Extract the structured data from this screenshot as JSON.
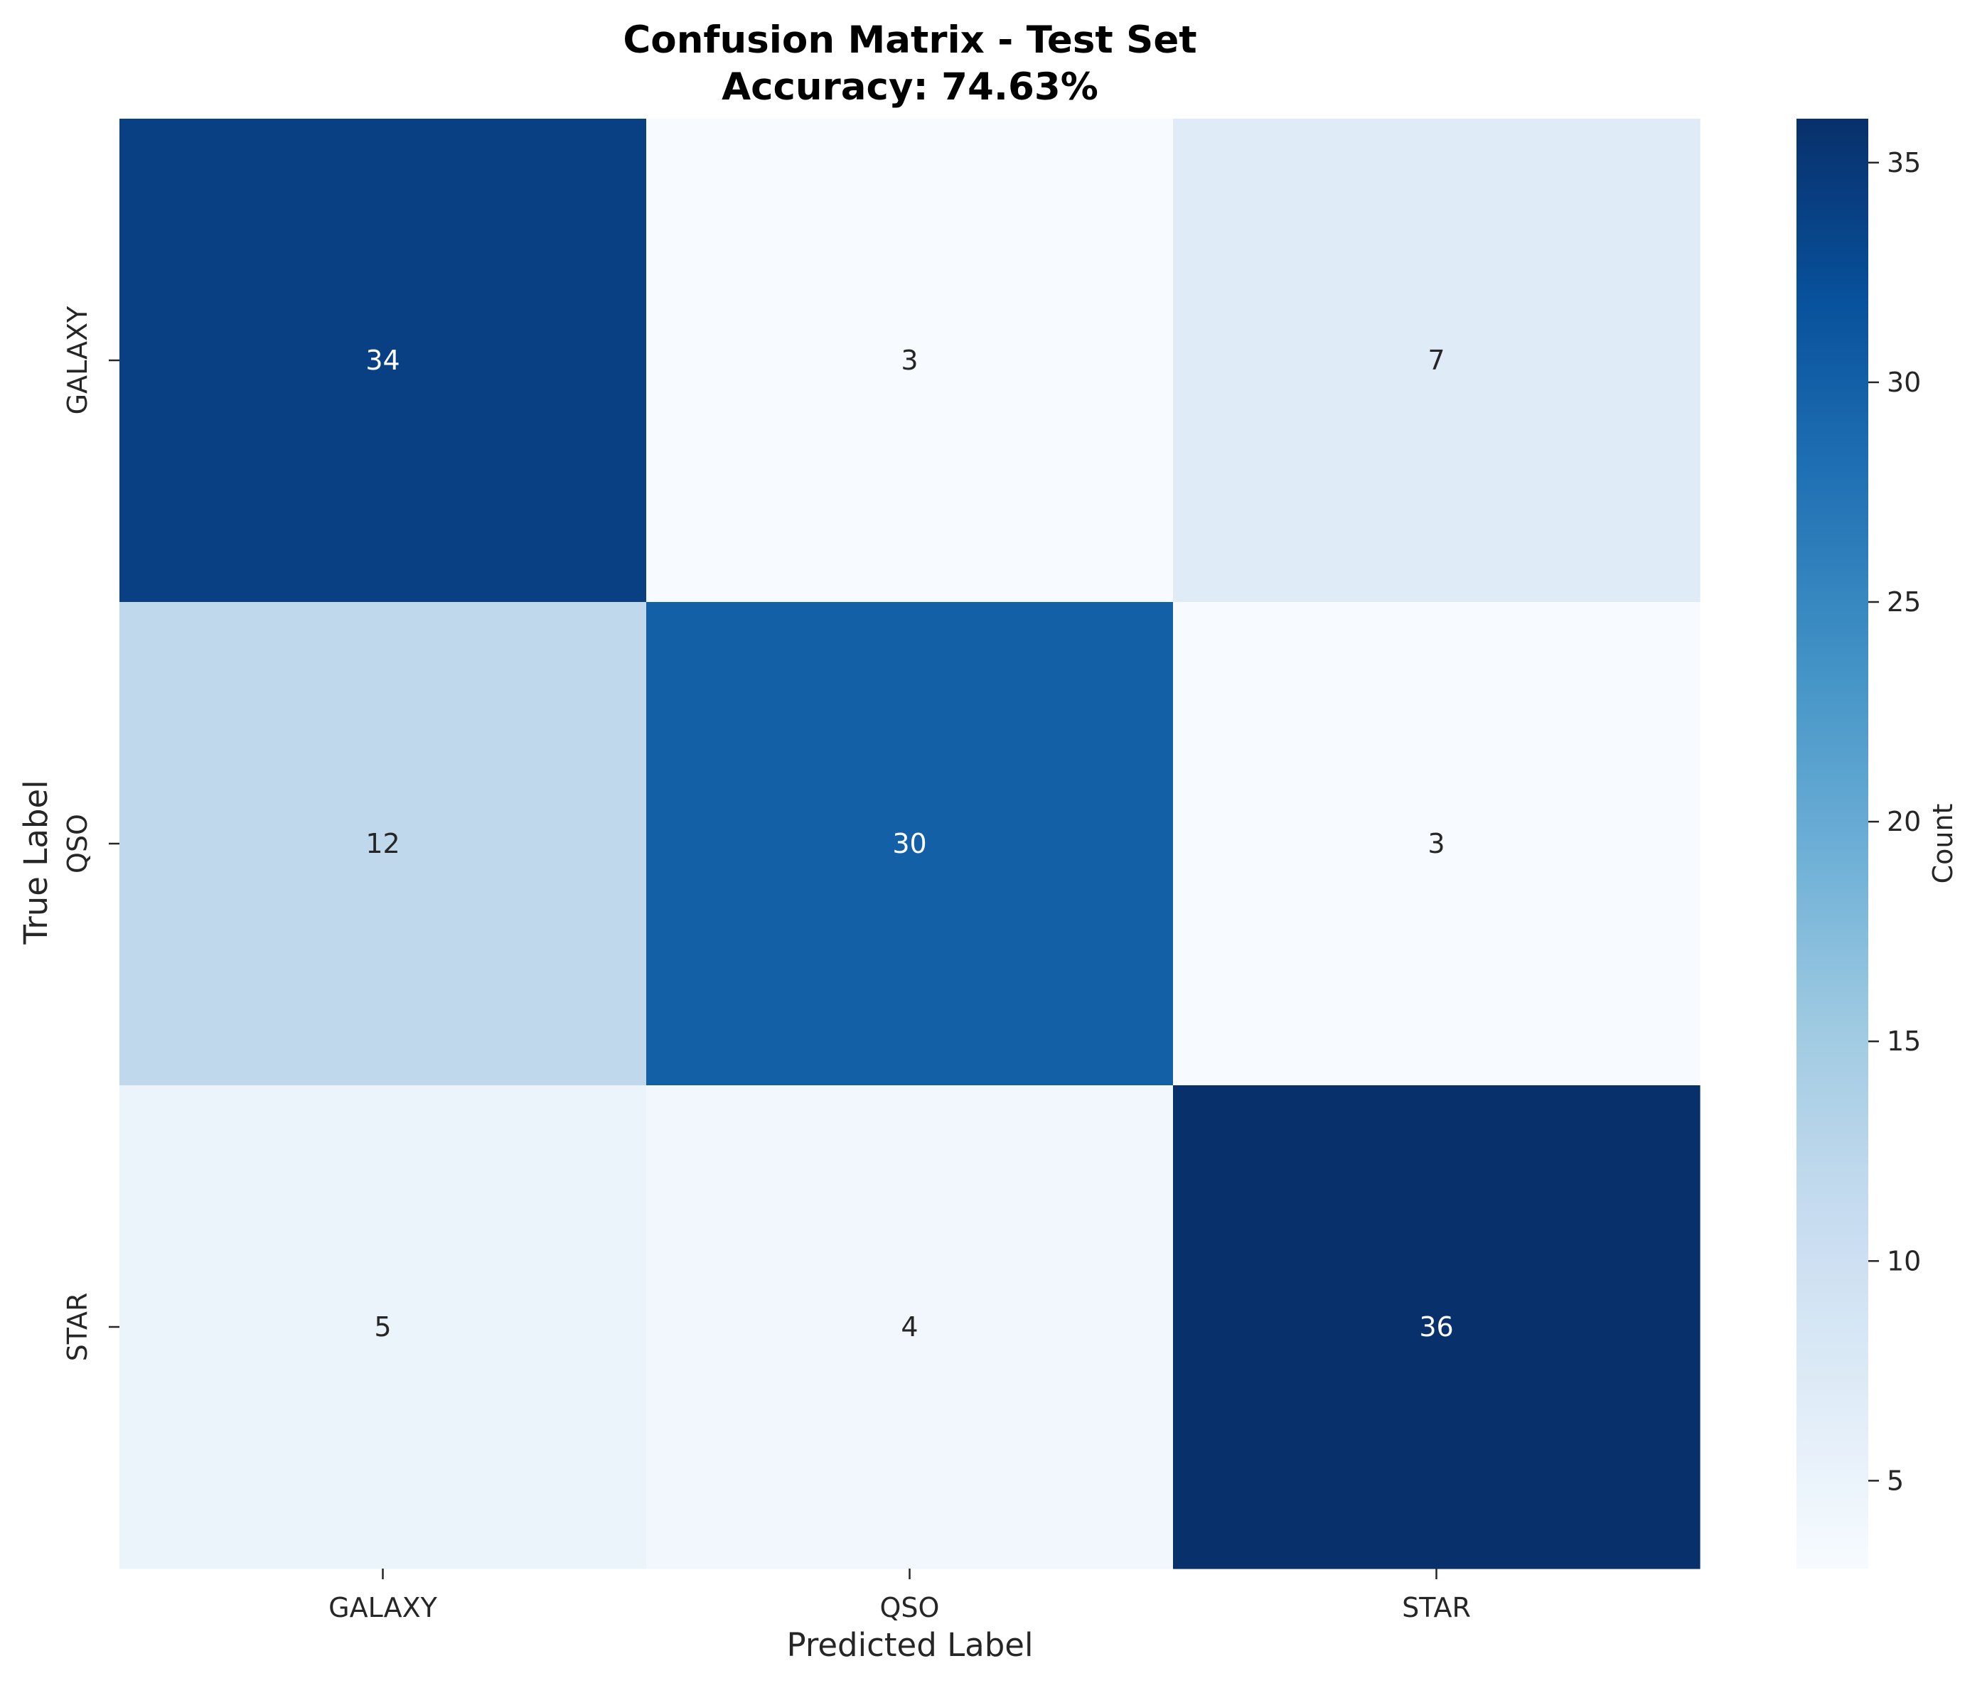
{
  "chart_data": {
    "type": "heatmap",
    "title": "Confusion Matrix - Test Set",
    "subtitle": "Accuracy: 74.63%",
    "xlabel": "Predicted Label",
    "ylabel": "True Label",
    "x_categories": [
      "GALAXY",
      "QSO",
      "STAR"
    ],
    "y_categories": [
      "GALAXY",
      "QSO",
      "STAR"
    ],
    "values": [
      [
        34,
        3,
        7
      ],
      [
        12,
        30,
        3
      ],
      [
        5,
        4,
        36
      ]
    ],
    "colormap": "Blues",
    "colorbar": {
      "label": "Count",
      "range": [
        3,
        36
      ],
      "ticks": [
        5,
        10,
        15,
        20,
        25,
        30,
        35
      ]
    },
    "grid": false,
    "legend": "colorbar-right"
  }
}
